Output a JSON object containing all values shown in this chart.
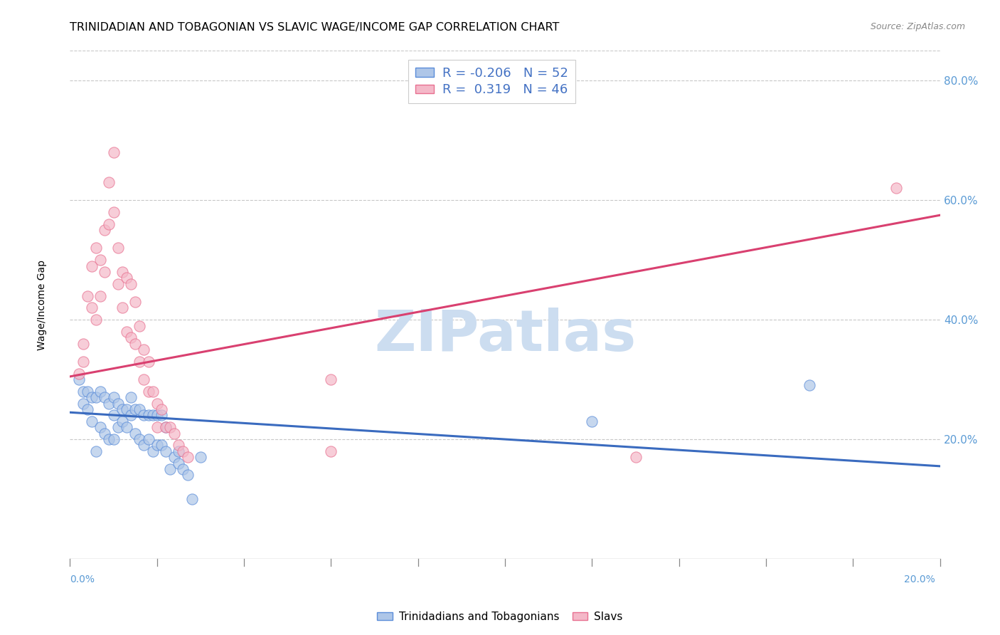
{
  "title": "TRINIDADIAN AND TOBAGONIAN VS SLAVIC WAGE/INCOME GAP CORRELATION CHART",
  "source": "Source: ZipAtlas.com",
  "ylabel": "Wage/Income Gap",
  "watermark": "ZIPatlas",
  "legend_blue_r": "-0.206",
  "legend_blue_n": "52",
  "legend_pink_r": "0.319",
  "legend_pink_n": "46",
  "blue_color": "#aec6e8",
  "pink_color": "#f4b8c8",
  "blue_edge_color": "#5b8dd9",
  "pink_edge_color": "#e87090",
  "blue_line_color": "#3a6bbf",
  "pink_line_color": "#d94070",
  "right_ytick_color": "#5b9bd5",
  "xtick_color": "#5b9bd5",
  "blue_scatter_x": [
    0.002,
    0.003,
    0.003,
    0.004,
    0.004,
    0.005,
    0.005,
    0.006,
    0.006,
    0.007,
    0.007,
    0.008,
    0.008,
    0.009,
    0.009,
    0.01,
    0.01,
    0.01,
    0.011,
    0.011,
    0.012,
    0.012,
    0.013,
    0.013,
    0.014,
    0.014,
    0.015,
    0.015,
    0.016,
    0.016,
    0.017,
    0.017,
    0.018,
    0.018,
    0.019,
    0.019,
    0.02,
    0.02,
    0.021,
    0.021,
    0.022,
    0.022,
    0.023,
    0.024,
    0.025,
    0.025,
    0.026,
    0.027,
    0.028,
    0.03,
    0.12,
    0.17
  ],
  "blue_scatter_y": [
    0.3,
    0.28,
    0.26,
    0.28,
    0.25,
    0.27,
    0.23,
    0.27,
    0.18,
    0.28,
    0.22,
    0.27,
    0.21,
    0.26,
    0.2,
    0.27,
    0.24,
    0.2,
    0.26,
    0.22,
    0.25,
    0.23,
    0.25,
    0.22,
    0.27,
    0.24,
    0.25,
    0.21,
    0.25,
    0.2,
    0.24,
    0.19,
    0.24,
    0.2,
    0.24,
    0.18,
    0.24,
    0.19,
    0.24,
    0.19,
    0.22,
    0.18,
    0.15,
    0.17,
    0.18,
    0.16,
    0.15,
    0.14,
    0.1,
    0.17,
    0.23,
    0.29
  ],
  "pink_scatter_x": [
    0.002,
    0.003,
    0.003,
    0.004,
    0.005,
    0.005,
    0.006,
    0.006,
    0.007,
    0.007,
    0.008,
    0.008,
    0.009,
    0.009,
    0.01,
    0.01,
    0.011,
    0.011,
    0.012,
    0.012,
    0.013,
    0.013,
    0.014,
    0.014,
    0.015,
    0.015,
    0.016,
    0.016,
    0.017,
    0.017,
    0.018,
    0.018,
    0.019,
    0.02,
    0.02,
    0.021,
    0.022,
    0.023,
    0.024,
    0.025,
    0.026,
    0.027,
    0.06,
    0.06,
    0.13,
    0.19
  ],
  "pink_scatter_y": [
    0.31,
    0.36,
    0.33,
    0.44,
    0.49,
    0.42,
    0.52,
    0.4,
    0.5,
    0.44,
    0.55,
    0.48,
    0.63,
    0.56,
    0.68,
    0.58,
    0.52,
    0.46,
    0.48,
    0.42,
    0.47,
    0.38,
    0.46,
    0.37,
    0.43,
    0.36,
    0.39,
    0.33,
    0.35,
    0.3,
    0.33,
    0.28,
    0.28,
    0.26,
    0.22,
    0.25,
    0.22,
    0.22,
    0.21,
    0.19,
    0.18,
    0.17,
    0.3,
    0.18,
    0.17,
    0.62
  ],
  "blue_trend_x": [
    0.0,
    0.2
  ],
  "blue_trend_y": [
    0.245,
    0.155
  ],
  "pink_trend_x": [
    0.0,
    0.2
  ],
  "pink_trend_y": [
    0.305,
    0.575
  ],
  "xlim": [
    0.0,
    0.2
  ],
  "ylim": [
    0.0,
    0.85
  ],
  "yticks": [
    0.2,
    0.4,
    0.6,
    0.8
  ],
  "yticklabels": [
    "20.0%",
    "40.0%",
    "60.0%",
    "80.0%"
  ],
  "xtick_positions": [
    0.0,
    0.02,
    0.04,
    0.06,
    0.08,
    0.1,
    0.12,
    0.14,
    0.16,
    0.18,
    0.2
  ],
  "grid_color": "#c8c8c8",
  "background_color": "#ffffff",
  "title_fontsize": 11.5,
  "source_fontsize": 9,
  "watermark_color": "#ccddf0",
  "watermark_fontsize": 58,
  "scatter_size": 120,
  "scatter_alpha": 0.7
}
